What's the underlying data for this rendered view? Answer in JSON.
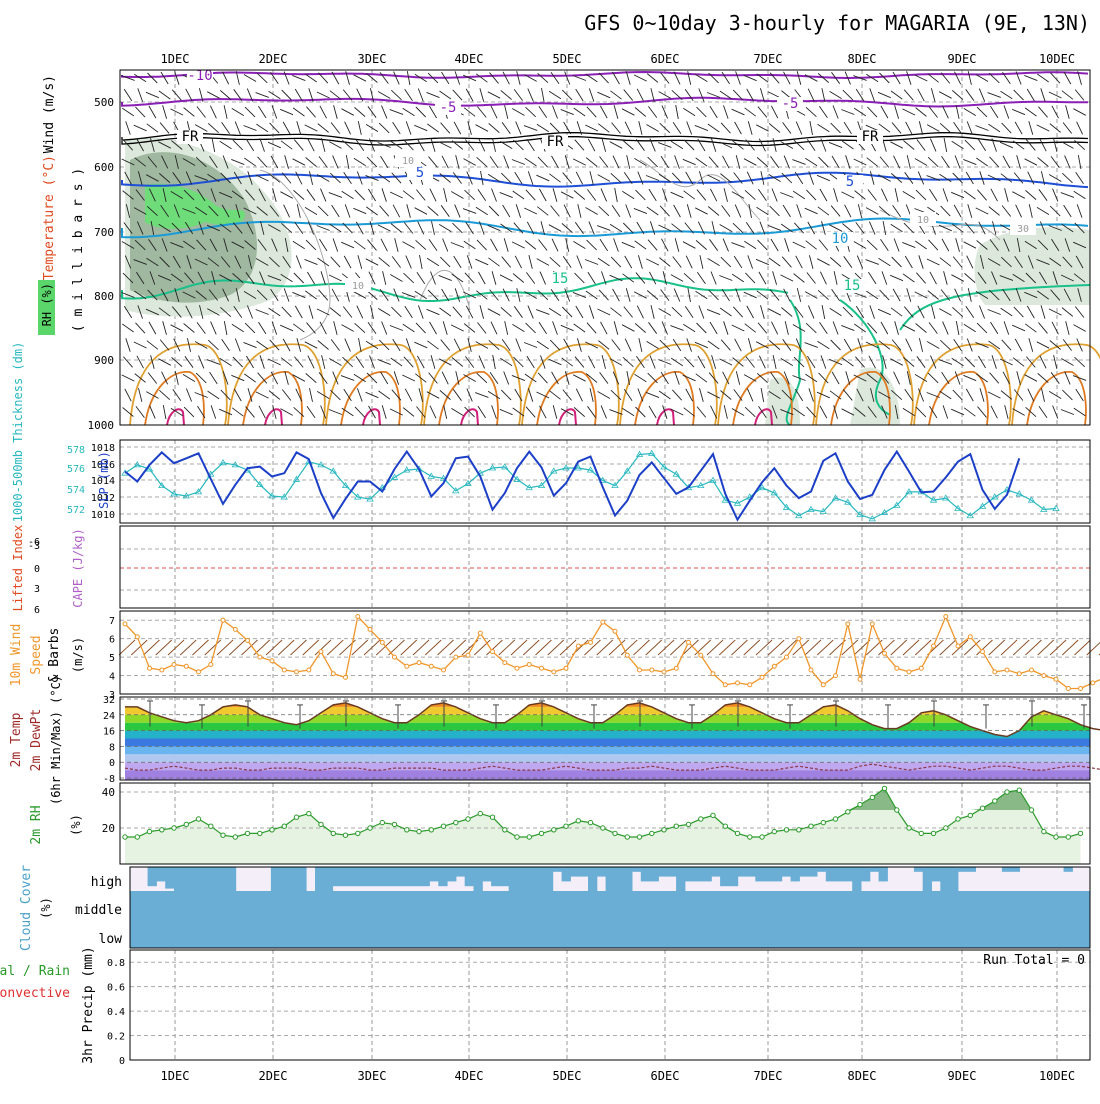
{
  "title": "GFS 0~10day 3-hourly for MAGARIA (9E, 13N)",
  "dates": [
    "1DEC",
    "2DEC",
    "3DEC",
    "4DEC",
    "5DEC",
    "6DEC",
    "7DEC",
    "8DEC",
    "9DEC",
    "10DEC"
  ],
  "colors": {
    "purple": "#8a1fb5",
    "black": "#000000",
    "blue": "#1f4fd6",
    "cyan": "#1a9ad6",
    "green": "#19c08a",
    "orange": "#e0a030",
    "magenta": "#d0207a",
    "slp": "#1c3fc8",
    "thick": "#28b8c0",
    "wind10": "#f0962a",
    "rh": "#2a9a2a",
    "cloud": "#6aaed6",
    "cloud_bg": "#f4eef8"
  },
  "panels": {
    "upper": {
      "ylabels": {
        "wind": "Wind (m/s)",
        "temp": "Temperature (°C)",
        "rh": "RH (%)",
        "mb": "( m i l l i b a r s )"
      },
      "yticks": [
        "500",
        "600",
        "700",
        "800",
        "900",
        "1000"
      ],
      "contour_labels": [
        {
          "text": "-10",
          "color": "purple"
        },
        {
          "text": "-5",
          "color": "purple"
        },
        {
          "text": "-5",
          "color": "purple"
        },
        {
          "text": "FR",
          "color": "black"
        },
        {
          "text": "FR",
          "color": "black"
        },
        {
          "text": "FR",
          "color": "black"
        },
        {
          "text": "5",
          "color": "blue"
        },
        {
          "text": "5",
          "color": "blue"
        },
        {
          "text": "10",
          "color": "cyan"
        },
        {
          "text": "15",
          "color": "green"
        },
        {
          "text": "15",
          "color": "green"
        },
        {
          "text": "10",
          "color": "gray"
        },
        {
          "text": "10",
          "color": "gray"
        },
        {
          "text": "10",
          "color": "gray"
        },
        {
          "text": "30",
          "color": "gray"
        }
      ]
    },
    "slp": {
      "ylabel_left": "1000-500mb Thickness (dm)",
      "ylabel_right": "SLP (mb)",
      "left_ticks": [
        "578",
        "576",
        "574",
        "572"
      ],
      "right_ticks": [
        "1018",
        "1016",
        "1014",
        "1012",
        "1010"
      ]
    },
    "cape": {
      "ylabel_li": "Lifted Index",
      "ylabel_cape": "CAPE (J/kg)",
      "ticks": [
        "-6",
        "-3",
        "0",
        "3",
        "6"
      ]
    },
    "wind": {
      "ylabel_a": "10m Wind",
      "ylabel_b": "Speed",
      "ylabel_c": "& Barbs",
      "unit": "(m/s)",
      "ticks": [
        "7",
        "6",
        "5",
        "4",
        "3"
      ]
    },
    "temp": {
      "ylabel_a": "2m Temp",
      "ylabel_b": "2m DewPt",
      "ylabel_c": "(6hr Min/Max) (°C)",
      "ticks": [
        "32",
        "24",
        "16",
        "8",
        "0",
        "-8"
      ]
    },
    "rh2m": {
      "ylabel": "2m RH",
      "unit": "(%)",
      "ticks": [
        "40",
        "20"
      ]
    },
    "cloud": {
      "ylabel": "Cloud Cover",
      "unit": "(%)",
      "levels": [
        "high",
        "middle",
        "low"
      ]
    },
    "precip": {
      "ylabel_total": "Total / Rain",
      "ylabel_conv": "Convective",
      "ylabel_mm": "3hr Precip (mm)",
      "ticks": [
        "0.8",
        "0.6",
        "0.4",
        "0.2",
        "0"
      ],
      "run_total": "Run Total = 0"
    }
  },
  "chart_data": [
    {
      "type": "line",
      "name": "SLP (mb)",
      "x_step_hours": 3,
      "ylim": [
        1009,
        1019
      ],
      "values": [
        1015.2,
        1014.0,
        1016.0,
        1017.5,
        1016.2,
        1016.8,
        1017.4,
        1014.3,
        1011.3,
        1013.6,
        1015.6,
        1015.8,
        1014.6,
        1015.0,
        1017.5,
        1016.7,
        1012.6,
        1009.6,
        1011.9,
        1014.0,
        1014.0,
        1012.8,
        1015.5,
        1017.6,
        1015.5,
        1012.2,
        1013.8,
        1016.8,
        1017.0,
        1014.6,
        1010.6,
        1012.6,
        1015.6,
        1017.6,
        1015.7,
        1012.3,
        1013.8,
        1016.4,
        1017.0,
        1013.3,
        1009.9,
        1011.7,
        1014.8,
        1016.3,
        1014.4,
        1012.5,
        1013.3,
        1015.3,
        1017.3,
        1012.5,
        1009.4,
        1011.7,
        1013.9,
        1015.6,
        1013.5,
        1012.0,
        1012.8,
        1016.5,
        1017.4,
        1014.0,
        1011.9,
        1012.4,
        1015.4,
        1017.6,
        1015.2,
        1012.7,
        1012.8,
        1014.5,
        1016.4,
        1017.3,
        1013.0,
        1010.7,
        1012.4,
        1016.8
      ]
    },
    {
      "type": "line",
      "name": "1000-500mb Thickness (dm)",
      "x_step_hours": 3,
      "ylim": [
        571,
        579
      ],
      "values": [
        575.8,
        576.6,
        576.2,
        574.6,
        573.8,
        573.6,
        574.0,
        575.7,
        576.8,
        576.6,
        576.1,
        574.7,
        573.6,
        573.5,
        575.2,
        576.9,
        576.6,
        576.0,
        574.6,
        573.5,
        573.3,
        574.4,
        575.4,
        576.1,
        576.2,
        575.5,
        575.3,
        574.1,
        574.8,
        575.8,
        576.3,
        576.4,
        575.2,
        574.4,
        574.6,
        576.0,
        576.3,
        576.3,
        576.1,
        575.1,
        574.6,
        576.0,
        577.6,
        577.7,
        576.4,
        575.7,
        574.4,
        574.6,
        575.1,
        573.2,
        572.9,
        573.5,
        574.4,
        573.9,
        572.5,
        571.7,
        572.3,
        572.1,
        573.4,
        573.0,
        571.8,
        571.4,
        572.0,
        572.7,
        574.0,
        574.0,
        573.2,
        573.4,
        572.4,
        571.7,
        572.6,
        573.5,
        574.2,
        573.8,
        573.2,
        572.3,
        572.4
      ]
    },
    {
      "type": "line",
      "name": "10m Wind Speed (m/s)",
      "x_step_hours": 3,
      "ylim": [
        3,
        7.5
      ],
      "values": [
        6.8,
        6.1,
        4.4,
        4.3,
        4.6,
        4.5,
        4.2,
        4.6,
        7.0,
        6.5,
        5.9,
        5.0,
        4.8,
        4.3,
        4.2,
        4.3,
        5.3,
        4.1,
        3.9,
        7.2,
        6.5,
        5.8,
        5.0,
        4.5,
        4.7,
        4.5,
        4.3,
        5.0,
        5.1,
        6.3,
        5.3,
        4.7,
        4.4,
        4.6,
        4.4,
        4.2,
        4.4,
        5.6,
        5.8,
        6.9,
        6.4,
        5.1,
        4.3,
        4.3,
        4.2,
        4.4,
        5.8,
        5.1,
        4.1,
        3.5,
        3.6,
        3.5,
        3.9,
        4.5,
        5.0,
        6.0,
        4.3,
        3.5,
        4.0,
        6.8,
        3.8,
        6.8,
        5.2,
        4.4,
        4.2,
        4.4,
        5.6,
        7.2,
        5.6,
        6.1,
        5.3,
        4.2,
        4.3,
        4.1,
        4.3,
        4.0,
        3.8,
        3.3,
        3.3,
        3.6,
        3.9,
        4.0,
        3.9,
        3.6
      ]
    },
    {
      "type": "area",
      "name": "2m RH (%)",
      "x_step_hours": 3,
      "ylim": [
        0,
        45
      ],
      "values": [
        15,
        15,
        18,
        19,
        20,
        22,
        25,
        21,
        16,
        15,
        17,
        17,
        19,
        21,
        26,
        28,
        22,
        17,
        16,
        17,
        20,
        23,
        22,
        19,
        18,
        19,
        21,
        23,
        25,
        28,
        26,
        19,
        15,
        15,
        17,
        19,
        21,
        24,
        23,
        20,
        17,
        15,
        15,
        17,
        19,
        21,
        22,
        25,
        27,
        21,
        17,
        15,
        15,
        18,
        19,
        19,
        21,
        23,
        25,
        29,
        33,
        37,
        42,
        30,
        20,
        17,
        17,
        20,
        25,
        27,
        31,
        35,
        40,
        41,
        30,
        18,
        15,
        15,
        17,
        19,
        21,
        25,
        28,
        31,
        33,
        26,
        17,
        15,
        15,
        17,
        18,
        18,
        19,
        19,
        19,
        21,
        23
      ]
    },
    {
      "type": "line",
      "name": "2m Temp (°C)",
      "x_step_hours": 3,
      "ylim": [
        -9,
        33
      ],
      "values": [
        28,
        28,
        25,
        23,
        21,
        20,
        21,
        24,
        28,
        29,
        28,
        24,
        22,
        20,
        19,
        21,
        25,
        29,
        30,
        28,
        25,
        22,
        20,
        20,
        24,
        29,
        30,
        28,
        25,
        22,
        20,
        20,
        24,
        29,
        30,
        28,
        25,
        22,
        20,
        20,
        24,
        29,
        30,
        28,
        25,
        22,
        20,
        20,
        24,
        29,
        30,
        28,
        25,
        22,
        20,
        20,
        24,
        28,
        29,
        26,
        22,
        19,
        17,
        17,
        20,
        25,
        26,
        24,
        21,
        18,
        16,
        14,
        13,
        16,
        23,
        26,
        24,
        22,
        19,
        17,
        16,
        15,
        18,
        24,
        25,
        24,
        21,
        19,
        18,
        17,
        16
      ]
    },
    {
      "type": "line",
      "name": "2m DewPt (°C)",
      "x_step_hours": 3,
      "ylim": [
        -9,
        33
      ],
      "values": [
        -3,
        -4,
        -4,
        -3,
        -2,
        -3,
        -4,
        -4,
        -3,
        -3,
        -4,
        -4,
        -3,
        -3,
        -3,
        -4,
        -4,
        -3,
        -3,
        -3,
        -4,
        -4,
        -3,
        -3,
        -3,
        -3,
        -4,
        -4,
        -4,
        -3,
        -2,
        -3,
        -4,
        -4,
        -4,
        -3,
        -2,
        -3,
        -4,
        -4,
        -4,
        -3,
        -3,
        -2,
        -3,
        -4,
        -4,
        -4,
        -3,
        -2,
        -3,
        -4,
        -4,
        -4,
        -3,
        -2,
        -3,
        -4,
        -4,
        -4,
        -2,
        -1,
        -2,
        -3,
        -4,
        -3,
        -2,
        -2,
        -3,
        -4,
        -3,
        -2,
        -2,
        -3,
        -4,
        -4,
        -3,
        -2,
        -2,
        -3,
        -4,
        -4,
        -3,
        -3,
        -3,
        -4,
        -5,
        -5,
        -5,
        -5,
        -5,
        -5
      ]
    },
    {
      "type": "bar",
      "name": "Cloud Cover high (%)",
      "x_step_hours": 3,
      "ylim": [
        0,
        100
      ],
      "values": [
        0,
        0,
        80,
        60,
        90,
        100,
        100,
        100,
        100,
        100,
        100,
        100,
        0,
        0,
        0,
        0,
        100,
        100,
        100,
        100,
        0,
        100,
        100,
        80,
        80,
        80,
        80,
        80,
        80,
        80,
        80,
        80,
        80,
        80,
        60,
        80,
        60,
        40,
        80,
        100,
        60,
        80,
        80,
        100,
        100,
        100,
        100,
        100,
        20,
        60,
        40,
        40,
        100,
        40,
        100,
        100,
        100,
        20,
        60,
        60,
        40,
        40,
        100,
        60,
        60,
        60,
        40,
        80,
        80,
        40,
        40,
        60,
        60,
        60,
        40,
        60,
        40,
        40,
        20,
        60,
        60,
        60,
        100,
        60,
        20,
        60,
        0,
        0,
        0,
        20,
        100,
        60,
        100,
        100,
        20,
        20,
        0,
        0,
        0,
        20,
        20,
        0,
        0,
        0,
        0,
        0,
        20,
        0,
        0
      ]
    },
    {
      "type": "bar",
      "name": "3hr Precip (mm)",
      "x_step_hours": 3,
      "ylim": [
        0,
        0.9
      ],
      "values": [
        0,
        0,
        0,
        0,
        0,
        0,
        0,
        0,
        0,
        0,
        0,
        0,
        0,
        0,
        0,
        0,
        0,
        0,
        0,
        0,
        0,
        0,
        0,
        0,
        0,
        0,
        0,
        0,
        0,
        0,
        0,
        0,
        0,
        0,
        0,
        0,
        0,
        0,
        0,
        0,
        0,
        0,
        0,
        0,
        0,
        0,
        0,
        0,
        0,
        0,
        0,
        0,
        0,
        0,
        0,
        0,
        0,
        0,
        0,
        0,
        0,
        0,
        0,
        0,
        0,
        0,
        0,
        0,
        0,
        0,
        0,
        0,
        0,
        0,
        0,
        0,
        0,
        0,
        0,
        0,
        0
      ]
    }
  ]
}
